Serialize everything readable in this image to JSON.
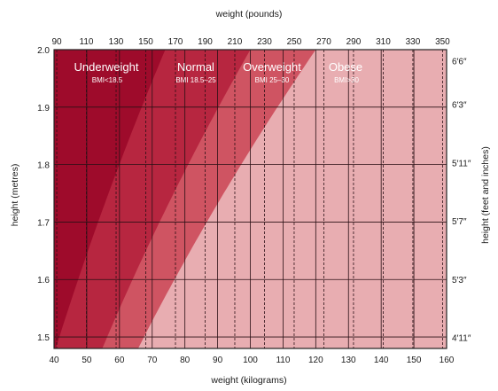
{
  "chart_data": {
    "type": "area",
    "title": "",
    "x_top_label": "weight (pounds)",
    "x_bottom_label": "weight (kilograms)",
    "y_left_label": "height (metres)",
    "y_right_label": "height (feet and inches)",
    "xlim_kg": [
      40,
      160
    ],
    "ylim_m": [
      1.48,
      2.0
    ],
    "x_bottom_ticks": [
      40,
      50,
      60,
      70,
      80,
      90,
      100,
      110,
      120,
      130,
      140,
      150,
      160
    ],
    "x_top_ticks": [
      90,
      110,
      130,
      150,
      170,
      190,
      210,
      230,
      250,
      270,
      290,
      310,
      330,
      350
    ],
    "y_left_ticks": [
      1.5,
      1.6,
      1.7,
      1.8,
      1.9,
      2.0
    ],
    "y_right_ticks": [
      {
        "label": "4′11″",
        "m": 1.499
      },
      {
        "label": "5′3″",
        "m": 1.6
      },
      {
        "label": "5′7″",
        "m": 1.702
      },
      {
        "label": "5′11″",
        "m": 1.803
      },
      {
        "label": "6′3″",
        "m": 1.905
      },
      {
        "label": "6′6″",
        "m": 1.981
      }
    ],
    "categories": [
      {
        "name": "Underweight",
        "range": "BMI<18.5",
        "bmi_min": 0,
        "bmi_max": 18.5,
        "color": "#9e0b2b"
      },
      {
        "name": "Normal",
        "range": "BMI 18.5–25",
        "bmi_min": 18.5,
        "bmi_max": 25,
        "color": "#b72640"
      },
      {
        "name": "Overweight",
        "range": "BMI 25–30",
        "bmi_min": 25,
        "bmi_max": 30,
        "color": "#cf5462"
      },
      {
        "name": "Obese",
        "range": "BMI>30",
        "bmi_min": 30,
        "bmi_max": 999,
        "color": "#e8adb1"
      }
    ],
    "grid": true
  }
}
